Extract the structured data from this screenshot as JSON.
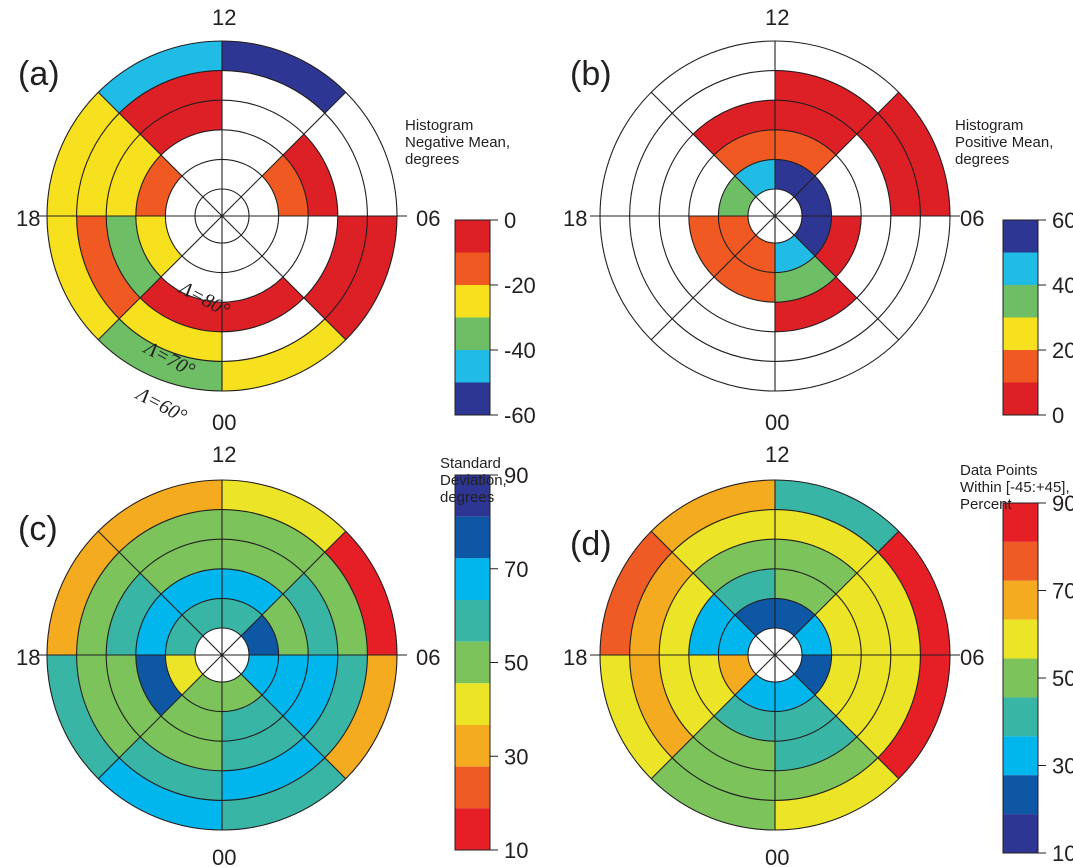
{
  "chart_data": [
    {
      "type": "polar-grid",
      "panel": "(a)",
      "mlt_labels": {
        "top": "12",
        "left": "18",
        "right": "06",
        "bottom": "00"
      },
      "rings": [
        85,
        80,
        75,
        70,
        65,
        60
      ],
      "ring_labels": [
        "Λ=80°",
        "Λ=70°",
        "Λ=60°"
      ],
      "sectors": 8,
      "colorbar": {
        "title": [
          "Histogram",
          "Negative Mean,",
          "degrees"
        ],
        "ticks": [
          "0",
          "-20",
          "-40",
          "-60"
        ],
        "colors": [
          "#dd1f26",
          "#f05a22",
          "#f7e01d",
          "#6dbe64",
          "#20bce6",
          "#2e3694"
        ]
      },
      "values": [
        [
          null,
          null,
          null,
          null,
          null,
          null,
          null,
          null
        ],
        [
          null,
          null,
          null,
          null,
          null,
          null,
          null,
          null
        ],
        [
          null,
          "#f05a22",
          null,
          null,
          null,
          "#f7e01d",
          "#f05a22",
          null
        ],
        [
          null,
          "#dd1f26",
          null,
          "#dd1f26",
          "#dd1f26",
          "#6dbe64",
          "#f7e01d",
          "#dd1f26"
        ],
        [
          null,
          null,
          "#dd1f26",
          null,
          "#f7e01d",
          "#f05a22",
          "#f7e01d",
          "#dd1f26"
        ],
        [
          "#2e3694",
          null,
          "#dd1f26",
          "#f7e01d",
          "#6dbe64",
          "#f7e01d",
          "#f7e01d",
          "#20bce6"
        ]
      ]
    },
    {
      "type": "polar-grid",
      "panel": "(b)",
      "mlt_labels": {
        "top": "12",
        "left": "18",
        "right": "06",
        "bottom": "00"
      },
      "sectors": 8,
      "colorbar": {
        "title": [
          "Histogram",
          "Positive Mean,",
          "degrees"
        ],
        "ticks": [
          "60",
          "40",
          "20",
          "0"
        ],
        "colors": [
          "#2e3694",
          "#20bce6",
          "#6dbe64",
          "#f7e01d",
          "#f05a22",
          "#dd1f26"
        ]
      },
      "values": [
        [
          null,
          null,
          null,
          null,
          null,
          null,
          null,
          null
        ],
        [
          "#2e3694",
          "#2e3694",
          "#2e3694",
          "#20bce6",
          "#f05a22",
          "#f05a22",
          "#6dbe64",
          "#20bce6"
        ],
        [
          "#f05a22",
          null,
          "#dd1f26",
          "#6dbe64",
          "#f05a22",
          "#f05a22",
          null,
          "#f05a22"
        ],
        [
          "#dd1f26",
          null,
          null,
          "#dd1f26",
          null,
          null,
          null,
          "#dd1f26"
        ],
        [
          "#dd1f26",
          "#dd1f26",
          null,
          null,
          null,
          null,
          null,
          null
        ],
        [
          null,
          "#dd1f26",
          null,
          null,
          null,
          null,
          null,
          null
        ]
      ]
    },
    {
      "type": "polar-grid",
      "panel": "(c)",
      "mlt_labels": {
        "top": "12",
        "left": "18",
        "right": "06",
        "bottom": "00"
      },
      "sectors": 8,
      "colorbar": {
        "title": [
          "Standard",
          "Deviation,",
          "degrees"
        ],
        "ticks": [
          "90",
          "70",
          "50",
          "30",
          "10"
        ],
        "colors": [
          "#2e3694",
          "#0d57a5",
          "#00b6ec",
          "#39b5a6",
          "#7bc35a",
          "#ebe427",
          "#f5ab20",
          "#ef5b24",
          "#e61f26"
        ]
      },
      "values": [
        [
          null,
          null,
          null,
          null,
          null,
          null,
          null,
          null
        ],
        [
          "#39b5a6",
          "#0d57a5",
          "#00b6ec",
          "#7bc35a",
          "#7bc35a",
          "#ebe427",
          "#39b5a6",
          "#39b5a6"
        ],
        [
          "#00b6ec",
          "#7bc35a",
          "#00b6ec",
          "#39b5a6",
          "#7bc35a",
          "#0d57a5",
          "#00b6ec",
          "#00b6ec"
        ],
        [
          "#7bc35a",
          "#39b5a6",
          "#00b6ec",
          "#39b5a6",
          "#7bc35a",
          "#7bc35a",
          "#39b5a6",
          "#7bc35a"
        ],
        [
          "#7bc35a",
          "#7bc35a",
          "#39b5a6",
          "#00b6ec",
          "#39b5a6",
          "#7bc35a",
          "#7bc35a",
          "#7bc35a"
        ],
        [
          "#ebe427",
          "#e61f26",
          "#f5ab20",
          "#39b5a6",
          "#00b6ec",
          "#39b5a6",
          "#f5ab20",
          "#f5ab20"
        ]
      ]
    },
    {
      "type": "polar-grid",
      "panel": "(d)",
      "mlt_labels": {
        "top": "12",
        "left": "18",
        "right": "06",
        "bottom": "00"
      },
      "sectors": 8,
      "colorbar": {
        "title": [
          "Data Points",
          "Within [-45:+45],",
          "Percent"
        ],
        "ticks": [
          "90",
          "70",
          "50",
          "30",
          "10"
        ],
        "colors": [
          "#e61f26",
          "#ef5b24",
          "#f5ab20",
          "#ebe427",
          "#7bc35a",
          "#39b5a6",
          "#00b6ec",
          "#0d57a5",
          "#2e3694"
        ]
      },
      "values": [
        [
          null,
          null,
          null,
          null,
          null,
          null,
          null,
          null
        ],
        [
          "#0d57a5",
          "#00b6ec",
          "#0d57a5",
          "#00b6ec",
          "#00b6ec",
          "#f5ab20",
          "#00b6ec",
          "#0d57a5"
        ],
        [
          "#7bc35a",
          "#ebe427",
          "#ebe427",
          "#39b5a6",
          "#39b5a6",
          "#ebe427",
          "#00b6ec",
          "#39b5a6"
        ],
        [
          "#7bc35a",
          "#ebe427",
          "#ebe427",
          "#39b5a6",
          "#7bc35a",
          "#ebe427",
          "#ebe427",
          "#7bc35a"
        ],
        [
          "#ebe427",
          "#ebe427",
          "#ebe427",
          "#7bc35a",
          "#7bc35a",
          "#f5ab20",
          "#f5ab20",
          "#ebe427"
        ],
        [
          "#39b5a6",
          "#e61f26",
          "#e61f26",
          "#ebe427",
          "#7bc35a",
          "#ebe427",
          "#ef5b24",
          "#f5ab20"
        ]
      ]
    }
  ]
}
